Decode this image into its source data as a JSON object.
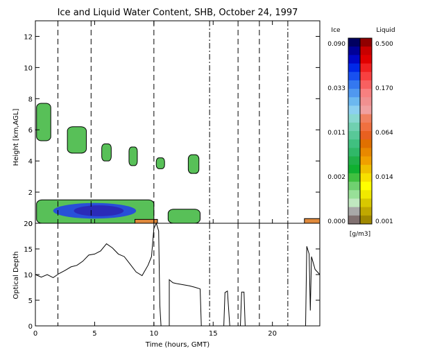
{
  "colors": {
    "background": "#ffffff",
    "axis": "#000000",
    "cloud_ice_low": "#58c058",
    "cloud_ice_mid": "#2fae4a",
    "cloud_ice_high": "#2850d8",
    "cloud_ice_core": "#2a2ab8",
    "liquid_bar": "#e08a3c"
  },
  "chart_data": [
    {
      "type": "heatmap",
      "title": "Ice and Liquid Water Content, SHB, October 24, 1997",
      "xlabel": "",
      "ylabel": "Height [km,AGL]",
      "xlim": [
        0,
        24
      ],
      "ylim": [
        0,
        13
      ],
      "x_ticks": [
        0,
        5,
        10,
        15,
        20
      ],
      "y_ticks": [
        0,
        2,
        4,
        6,
        8,
        10,
        12
      ],
      "y_tick_labels": [
        "0",
        "2",
        "4",
        "6",
        "8",
        "10",
        "12"
      ],
      "grid": false,
      "vertical_markers": {
        "dashed": [
          1.9,
          4.7,
          10.0,
          17.1,
          18.9
        ],
        "dash_dot": [
          14.7,
          21.3
        ]
      },
      "ice_regions": [
        {
          "x": [
            0.1,
            1.3
          ],
          "y": [
            5.3,
            7.7
          ]
        },
        {
          "x": [
            2.7,
            4.3
          ],
          "y": [
            4.5,
            6.2
          ]
        },
        {
          "x": [
            5.6,
            6.4
          ],
          "y": [
            4.0,
            5.1
          ]
        },
        {
          "x": [
            7.9,
            8.6
          ],
          "y": [
            3.7,
            4.9
          ]
        },
        {
          "x": [
            10.2,
            10.9
          ],
          "y": [
            3.5,
            4.2
          ]
        },
        {
          "x": [
            12.9,
            13.8
          ],
          "y": [
            3.2,
            4.4
          ]
        },
        {
          "x": [
            0.1,
            10.0
          ],
          "y": [
            0.0,
            1.5
          ]
        },
        {
          "x": [
            11.2,
            13.9
          ],
          "y": [
            0.0,
            0.9
          ]
        }
      ],
      "ice_core_region": {
        "x": [
          1.5,
          8.5
        ],
        "y": [
          0.3,
          1.3
        ]
      },
      "liquid_regions": [
        {
          "x": [
            8.4,
            10.3
          ],
          "y": [
            0.0,
            0.25
          ]
        },
        {
          "x": [
            22.7,
            24.0
          ],
          "y": [
            0.0,
            0.3
          ]
        }
      ],
      "colorbar": {
        "ice_label": "Ice",
        "liquid_label": "Liquid",
        "units": "[g/m3]",
        "ice_ticks": [
          "0.090",
          "0.033",
          "0.011",
          "0.002",
          "0.000"
        ],
        "liquid_ticks": [
          "0.500",
          "0.170",
          "0.064",
          "0.014",
          "0.001"
        ],
        "ice_colors": [
          "#000060",
          "#000098",
          "#0008c8",
          "#0028e8",
          "#1850f0",
          "#3478f0",
          "#5098f0",
          "#6cb8f0",
          "#8cd0f0",
          "#88d8d0",
          "#70d0b0",
          "#58c898",
          "#40c080",
          "#30b868",
          "#20b048",
          "#10b030",
          "#40c040",
          "#70d070",
          "#98e098",
          "#c0e8c0",
          "#a8a8a8",
          "#807070"
        ],
        "liquid_colors": [
          "#900000",
          "#c80000",
          "#e00000",
          "#f02020",
          "#f84040",
          "#f86060",
          "#f88080",
          "#f09090",
          "#f0a0a0",
          "#f08060",
          "#f07040",
          "#e86020",
          "#e07000",
          "#e88800",
          "#f0a000",
          "#f0c000",
          "#f8e000",
          "#ffff00",
          "#f0e800",
          "#d8c800",
          "#c0a800",
          "#a08800"
        ]
      }
    },
    {
      "type": "line",
      "title": "",
      "xlabel": "Time (hours, GMT)",
      "ylabel": "Optical Depth",
      "xlim": [
        0,
        24
      ],
      "ylim": [
        0,
        20
      ],
      "x_ticks": [
        0,
        5,
        10,
        15,
        20
      ],
      "x_tick_labels": [
        "0",
        "5",
        "10",
        "15",
        "20"
      ],
      "y_ticks": [
        0,
        5,
        10,
        15,
        20
      ],
      "y_tick_labels": [
        "0",
        "5",
        "10",
        "15",
        "20"
      ],
      "grid": false,
      "series": [
        {
          "points": [
            [
              0.0,
              10.0
            ],
            [
              0.5,
              9.5
            ],
            [
              1.0,
              10.0
            ],
            [
              1.5,
              9.4
            ],
            [
              2.0,
              10.2
            ],
            [
              2.5,
              10.8
            ],
            [
              3.0,
              11.5
            ],
            [
              3.5,
              11.8
            ],
            [
              4.0,
              12.6
            ],
            [
              4.5,
              13.8
            ],
            [
              5.0,
              14.0
            ],
            [
              5.5,
              14.6
            ],
            [
              6.0,
              16.0
            ],
            [
              6.5,
              15.2
            ],
            [
              7.0,
              14.0
            ],
            [
              7.5,
              13.5
            ],
            [
              8.0,
              12.0
            ],
            [
              8.5,
              10.5
            ],
            [
              9.0,
              9.8
            ],
            [
              9.5,
              11.8
            ],
            [
              9.8,
              13.5
            ],
            [
              10.0,
              19.0
            ],
            [
              10.2,
              20.0
            ],
            [
              10.4,
              18.5
            ],
            [
              10.5,
              4.0
            ],
            [
              10.6,
              0.0
            ]
          ]
        },
        {
          "points": [
            [
              11.3,
              0.0
            ],
            [
              11.3,
              9.0
            ],
            [
              11.6,
              8.4
            ],
            [
              12.0,
              8.2
            ],
            [
              12.5,
              8.0
            ],
            [
              13.0,
              7.8
            ],
            [
              13.5,
              7.5
            ],
            [
              13.9,
              7.2
            ],
            [
              14.0,
              0.0
            ]
          ]
        },
        {
          "points": [
            [
              15.9,
              0.0
            ],
            [
              16.0,
              6.5
            ],
            [
              16.2,
              6.8
            ],
            [
              16.4,
              0.0
            ]
          ]
        },
        {
          "points": [
            [
              17.3,
              0.0
            ],
            [
              17.4,
              6.6
            ],
            [
              17.6,
              6.6
            ],
            [
              17.7,
              0.0
            ]
          ]
        },
        {
          "points": [
            [
              22.8,
              0.0
            ],
            [
              22.9,
              15.5
            ],
            [
              23.1,
              14.0
            ],
            [
              23.2,
              3.0
            ],
            [
              23.3,
              13.5
            ],
            [
              23.6,
              11.0
            ],
            [
              24.0,
              10.0
            ]
          ]
        }
      ],
      "vertical_markers": {
        "dashed": [
          1.9,
          10.0,
          17.1,
          18.9
        ],
        "dash_dot": [
          14.7,
          21.3
        ]
      }
    }
  ]
}
